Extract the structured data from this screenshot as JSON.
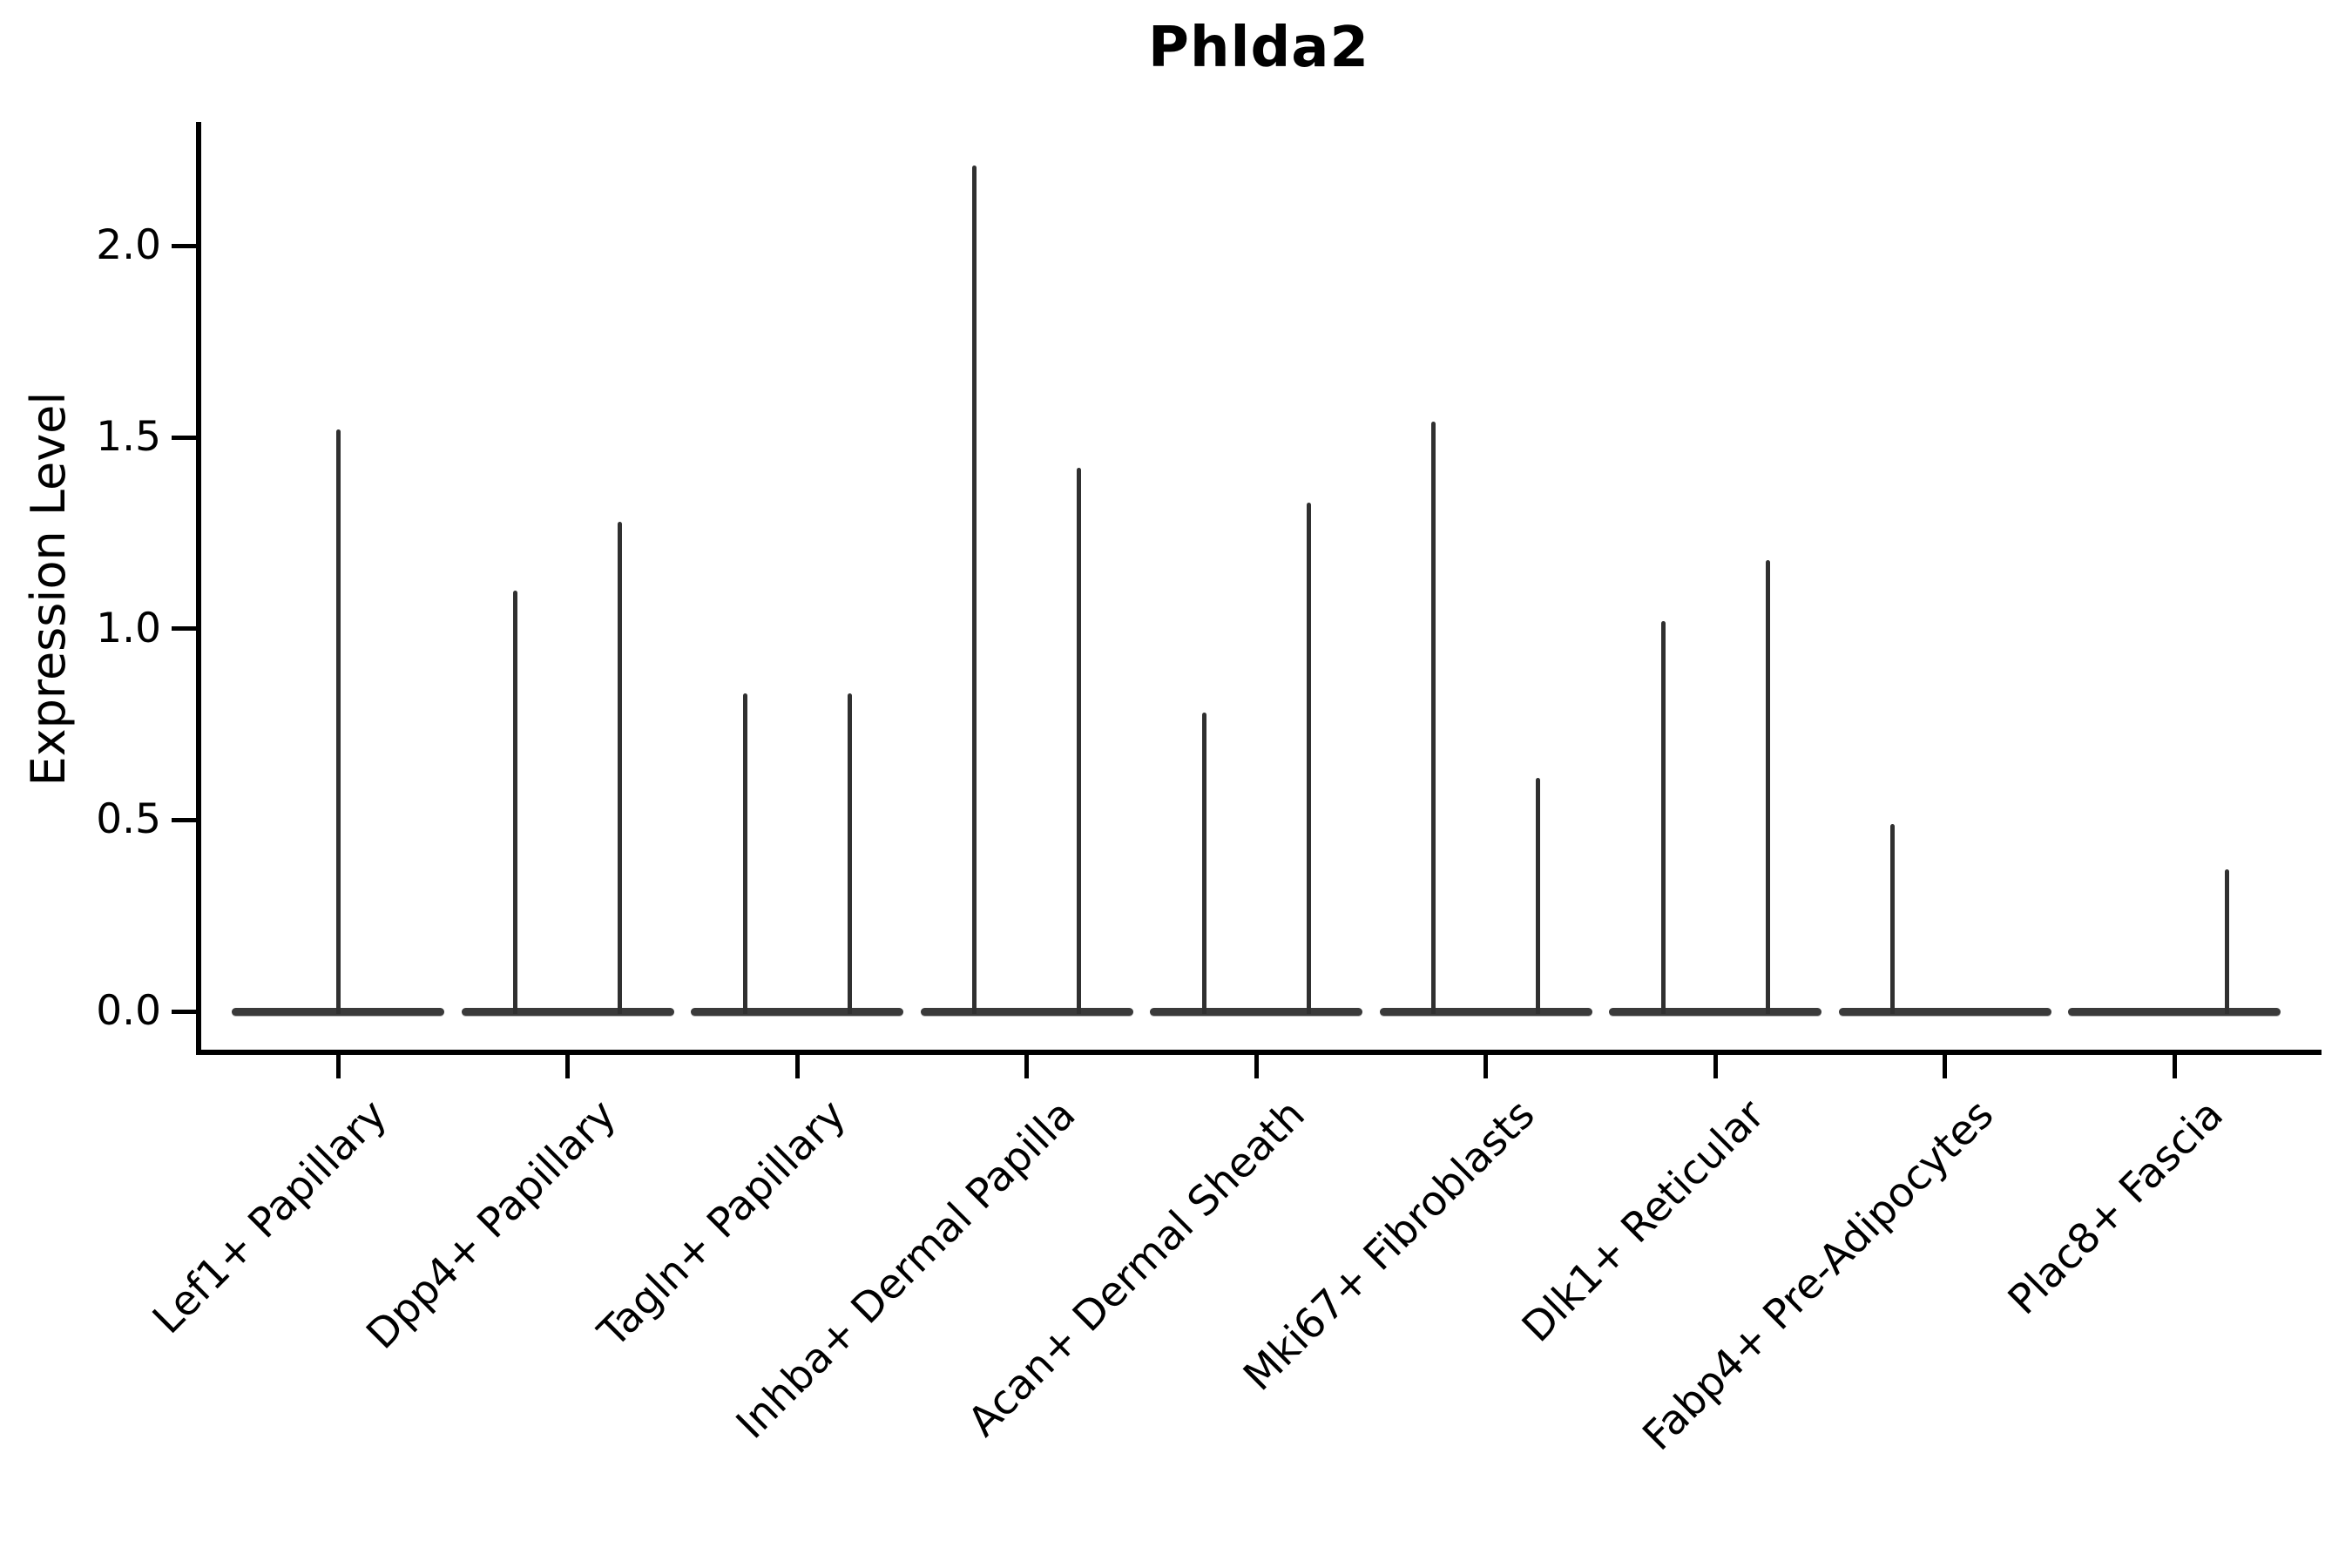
{
  "figure": {
    "title": "Phlda2"
  },
  "y_axis": {
    "label": "Expression Level",
    "tick_labels": [
      "0.0",
      "0.5",
      "1.0",
      "1.5",
      "2.0"
    ],
    "tick_values": [
      0.0,
      0.5,
      1.0,
      1.5,
      2.0
    ]
  },
  "x_axis": {
    "tick_labels": [
      "Lef1+ Papillary",
      "Dpp4+ Papillary",
      "Tagln+ Papillary",
      "Inhba+ Dermal Papilla",
      "Acan+ Dermal Sheath",
      "Mki67+ Fibroblasts",
      "Dlk1+ Reticular",
      "Fabp4+ Pre-Adipocytes",
      "Plac8+ Fascia"
    ]
  },
  "chart_data": {
    "type": "violin",
    "title": "Phlda2",
    "xlabel": "",
    "ylabel": "Expression Level",
    "ylim": [
      -0.11,
      2.32
    ],
    "yticks": [
      0.0,
      0.5,
      1.0,
      1.5,
      2.0
    ],
    "grid": false,
    "legend": false,
    "description": "Per category a flat violin base sits at expression 0 with thin density spikes rising to the maximum expression value; most categories contain two side-by-side violins (left/right), Lef1+ Papillary has a single full-width centered violin, Fabp4+ Pre-Adipocytes only a left spike and Plac8+ Fascia only a right spike.",
    "baseline_value": 0.0,
    "categories": [
      "Lef1+ Papillary",
      "Dpp4+ Papillary",
      "Tagln+ Papillary",
      "Inhba+ Dermal Papilla",
      "Acan+ Dermal Sheath",
      "Mki67+ Fibroblasts",
      "Dlk1+ Reticular",
      "Fabp4+ Pre-Adipocytes",
      "Plac8+ Fascia"
    ],
    "series": [
      {
        "name": "left-violin-max",
        "values": [
          null,
          1.1,
          0.83,
          2.21,
          0.78,
          1.54,
          1.02,
          0.49,
          null
        ]
      },
      {
        "name": "right-violin-max",
        "values": [
          null,
          1.28,
          0.83,
          1.42,
          1.33,
          0.61,
          1.18,
          null,
          0.37
        ]
      },
      {
        "name": "center-violin-max",
        "values": [
          1.52,
          null,
          null,
          null,
          null,
          null,
          null,
          null,
          null
        ]
      }
    ],
    "colors": {
      "spike": "#303030",
      "baseline": "#3a3a3a",
      "axis": "#000000",
      "text": "#000000",
      "background": "#ffffff"
    }
  }
}
